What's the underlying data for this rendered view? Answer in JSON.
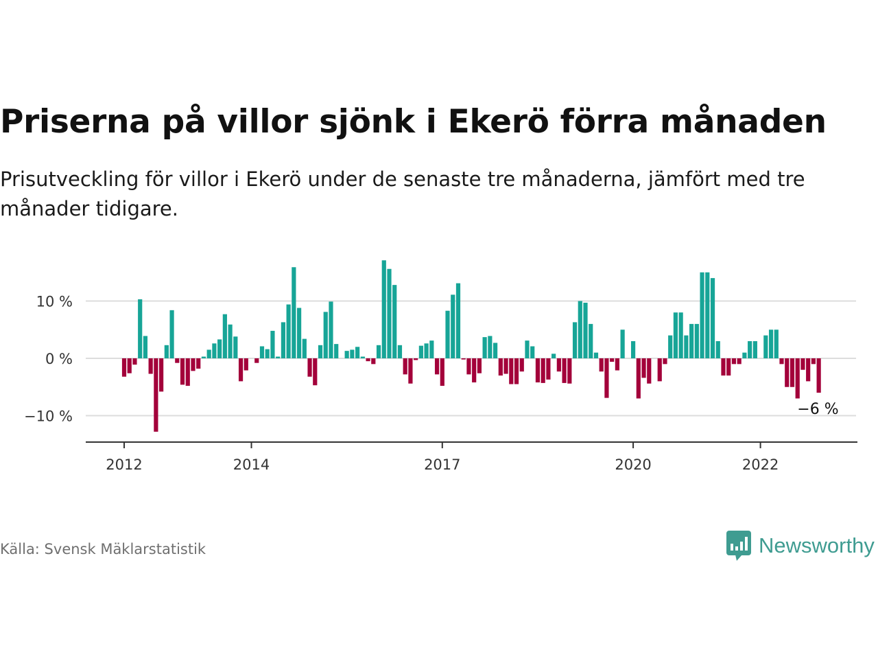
{
  "title": "Priserna på villor sjönk i Ekerö förra månaden",
  "subtitle": "Prisutveckling för villor i Ekerö under de senaste tre månaderna, jämfört med tre månader tidigare.",
  "source": "Källa: Svensk Mäklarstatistik",
  "brand": {
    "name": "Newsworthy",
    "icon": "newsworthy-logo-icon",
    "color": "#3f9c91"
  },
  "colors": {
    "positive": "#17a597",
    "negative": "#a3003a",
    "grid": "#dddddd",
    "axis": "#333333"
  },
  "chart_data": {
    "type": "bar",
    "title": "Priserna på villor sjönk i Ekerö förra månaden",
    "xlabel": "",
    "ylabel": "",
    "ylim": [
      -15,
      17
    ],
    "yticks": [
      -10,
      0,
      10
    ],
    "ytick_labels": [
      "−10 %",
      "0 %",
      "10 %"
    ],
    "xticks": [
      "2012-01",
      "2014-01",
      "2017-01",
      "2020-01",
      "2022-01"
    ],
    "xtick_labels": [
      "2012",
      "2014",
      "2017",
      "2020",
      "2022"
    ],
    "grid": true,
    "categories": [
      "2012-01",
      "2012-02",
      "2012-03",
      "2012-04",
      "2012-05",
      "2012-06",
      "2012-07",
      "2012-08",
      "2012-09",
      "2012-10",
      "2012-11",
      "2012-12",
      "2013-01",
      "2013-02",
      "2013-03",
      "2013-04",
      "2013-05",
      "2013-06",
      "2013-07",
      "2013-08",
      "2013-09",
      "2013-10",
      "2013-11",
      "2013-12",
      "2014-01",
      "2014-02",
      "2014-03",
      "2014-04",
      "2014-05",
      "2014-06",
      "2014-07",
      "2014-08",
      "2014-09",
      "2014-10",
      "2014-11",
      "2014-12",
      "2015-01",
      "2015-02",
      "2015-03",
      "2015-04",
      "2015-05",
      "2015-06",
      "2015-07",
      "2015-08",
      "2015-09",
      "2015-10",
      "2015-11",
      "2015-12",
      "2016-01",
      "2016-02",
      "2016-03",
      "2016-04",
      "2016-05",
      "2016-06",
      "2016-07",
      "2016-08",
      "2016-09",
      "2016-10",
      "2016-11",
      "2016-12",
      "2017-01",
      "2017-02",
      "2017-03",
      "2017-04",
      "2017-05",
      "2017-06",
      "2017-07",
      "2017-08",
      "2017-09",
      "2017-10",
      "2017-11",
      "2017-12",
      "2018-01",
      "2018-02",
      "2018-03",
      "2018-04",
      "2018-05",
      "2018-06",
      "2018-07",
      "2018-08",
      "2018-09",
      "2018-10",
      "2018-11",
      "2018-12",
      "2019-01",
      "2019-02",
      "2019-03",
      "2019-04",
      "2019-05",
      "2019-06",
      "2019-07",
      "2019-08",
      "2019-09",
      "2019-10",
      "2019-11",
      "2019-12",
      "2020-01",
      "2020-02",
      "2020-03",
      "2020-04",
      "2020-05",
      "2020-06",
      "2020-07",
      "2020-08",
      "2020-09",
      "2020-10",
      "2020-11",
      "2020-12",
      "2021-01",
      "2021-02",
      "2021-03",
      "2021-04",
      "2021-05",
      "2021-06",
      "2021-07",
      "2021-08",
      "2021-09",
      "2021-10",
      "2021-11",
      "2021-12",
      "2022-01",
      "2022-02",
      "2022-03",
      "2022-04",
      "2022-05",
      "2022-06",
      "2022-07",
      "2022-08",
      "2022-09",
      "2022-10",
      "2022-11",
      "2022-12"
    ],
    "values": [
      -3.2,
      -2.6,
      -1.1,
      10.3,
      3.9,
      -2.7,
      -12.8,
      -5.8,
      2.3,
      8.4,
      -0.8,
      -4.6,
      -4.8,
      -2.2,
      -1.8,
      0.3,
      1.5,
      2.6,
      3.3,
      7.7,
      5.9,
      3.8,
      -4.0,
      -2.1,
      0.0,
      -0.8,
      2.1,
      1.6,
      4.8,
      0.3,
      6.3,
      9.4,
      15.9,
      8.8,
      3.4,
      -3.2,
      -4.7,
      2.3,
      8.1,
      9.9,
      2.5,
      0.0,
      1.3,
      1.5,
      2.0,
      0.3,
      -0.5,
      -1.0,
      2.3,
      17.1,
      15.6,
      12.8,
      2.3,
      -2.8,
      -4.4,
      -0.3,
      2.2,
      2.6,
      3.1,
      -2.8,
      -4.8,
      8.3,
      11.1,
      13.1,
      -0.2,
      -2.8,
      -4.2,
      -2.6,
      3.7,
      3.9,
      2.7,
      -3.0,
      -2.7,
      -4.5,
      -4.5,
      -2.3,
      3.1,
      2.1,
      -4.2,
      -4.3,
      -3.7,
      0.8,
      -2.3,
      -4.3,
      -4.4,
      6.3,
      10.0,
      9.7,
      6.0,
      1.0,
      -2.3,
      -6.9,
      -0.6,
      -2.1,
      5.0,
      0.0,
      3.0,
      -7.0,
      -3.4,
      -4.4,
      0.0,
      -4.0,
      -1.0,
      4.0,
      8.0,
      8.0,
      4.0,
      6.0,
      6.0,
      15.0,
      15.0,
      14.0,
      3.0,
      -3.0,
      -3.0,
      -1.0,
      -1.0,
      1.0,
      3.0,
      3.0,
      0.0,
      4.0,
      5.0,
      5.0,
      -1.0,
      -5.0,
      -5.0,
      -7.0,
      -2.0,
      -4.0,
      -1.0,
      -6.0
    ],
    "annotation": {
      "category": "2022-12",
      "text": "−6 %"
    }
  }
}
